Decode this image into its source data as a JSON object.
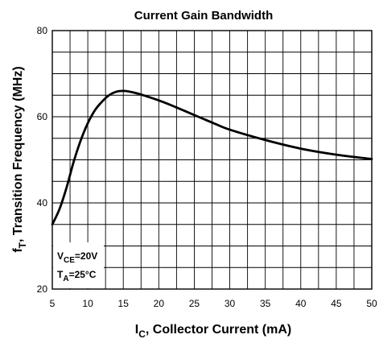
{
  "chart_data": {
    "type": "line",
    "title": "Current Gain Bandwidth",
    "xlabel_main": "I",
    "xlabel_sub": "C",
    "xlabel_rest": ", Collector Current  (mA)",
    "ylabel_main": "f",
    "ylabel_sub": "T",
    "ylabel_rest": ", Transition Frequency (MHz)",
    "xlim": [
      5,
      50
    ],
    "ylim": [
      20,
      80
    ],
    "x_ticks": [
      "5",
      "10",
      "15",
      "20",
      "25",
      "30",
      "35",
      "40",
      "45",
      "50"
    ],
    "y_ticks": [
      "20",
      "40",
      "60",
      "80"
    ],
    "grid": true,
    "series": [
      {
        "x": [
          5,
          6,
          7,
          8,
          9,
          10,
          11,
          12,
          13,
          14,
          15,
          16,
          17,
          18,
          20,
          22,
          25,
          28,
          30,
          35,
          40,
          45,
          50
        ],
        "y": [
          35,
          38.5,
          43.5,
          49.5,
          54.5,
          58.5,
          61.5,
          63.5,
          65,
          65.8,
          66,
          65.8,
          65.4,
          64.9,
          63.8,
          62.5,
          60.4,
          58.3,
          57,
          54.6,
          52.6,
          51.2,
          50.2
        ]
      }
    ],
    "annotations": {
      "vce": {
        "main": "V",
        "sub": "CE",
        "rest": "=20V"
      },
      "ta": {
        "main": "T",
        "sub": "A",
        "rest": "=25°C"
      }
    }
  }
}
